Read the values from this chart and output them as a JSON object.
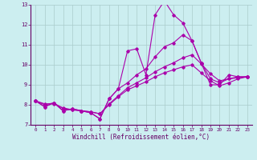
{
  "xlabel": "Windchill (Refroidissement éolien,°C)",
  "bg_color": "#cceef0",
  "grid_color": "#aacccc",
  "line_color": "#aa00aa",
  "spine_color": "#660066",
  "xlim": [
    -0.5,
    23.5
  ],
  "ylim": [
    7,
    13
  ],
  "xticks": [
    0,
    1,
    2,
    3,
    4,
    5,
    6,
    7,
    8,
    9,
    10,
    11,
    12,
    13,
    14,
    15,
    16,
    17,
    18,
    19,
    20,
    21,
    22,
    23
  ],
  "yticks": [
    7,
    8,
    9,
    10,
    11,
    12,
    13
  ],
  "series": [
    [
      8.2,
      7.9,
      8.1,
      7.7,
      7.8,
      7.7,
      7.6,
      7.3,
      8.3,
      8.8,
      10.7,
      10.8,
      9.5,
      12.5,
      13.2,
      12.5,
      12.1,
      11.2,
      10.1,
      9.0,
      9.0,
      9.5,
      9.4,
      9.4
    ],
    [
      8.2,
      7.9,
      8.1,
      7.7,
      7.8,
      7.7,
      7.6,
      7.3,
      8.3,
      8.8,
      9.1,
      9.5,
      9.8,
      10.4,
      10.9,
      11.1,
      11.5,
      11.2,
      10.1,
      9.3,
      9.1,
      9.3,
      9.4,
      9.4
    ],
    [
      8.2,
      8.0,
      8.1,
      7.8,
      7.75,
      7.7,
      7.65,
      7.55,
      8.05,
      8.45,
      8.85,
      9.1,
      9.35,
      9.65,
      9.9,
      10.1,
      10.35,
      10.5,
      10.05,
      9.55,
      9.2,
      9.3,
      9.35,
      9.4
    ],
    [
      8.2,
      8.05,
      8.05,
      7.85,
      7.75,
      7.7,
      7.65,
      7.55,
      8.0,
      8.4,
      8.75,
      8.95,
      9.15,
      9.4,
      9.6,
      9.75,
      9.9,
      10.0,
      9.6,
      9.2,
      8.95,
      9.1,
      9.3,
      9.4
    ]
  ]
}
